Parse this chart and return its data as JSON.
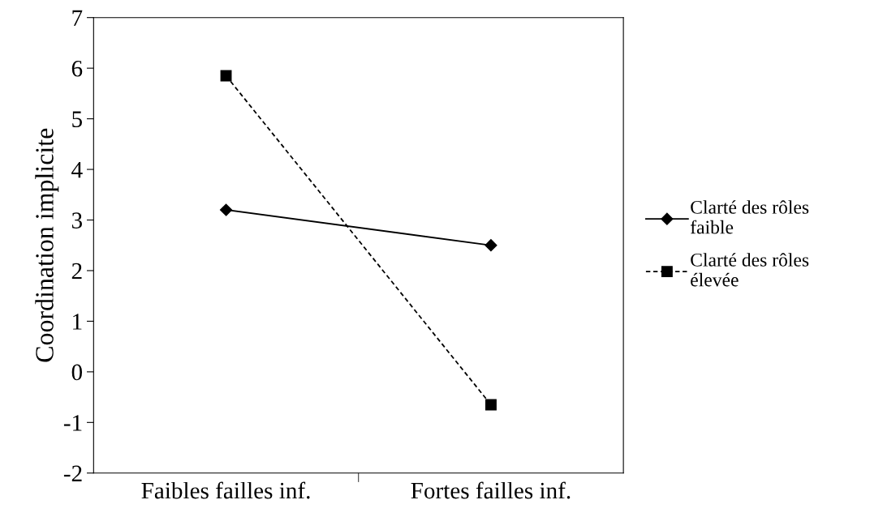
{
  "chart_data": {
    "type": "line",
    "ylabel": "Coordination implicite",
    "categories": [
      "Faibles failles inf.",
      "Fortes failles inf."
    ],
    "series": [
      {
        "name": "Clarté des rôles\nfaible",
        "color": "#000000",
        "values": [
          3.2,
          2.5
        ],
        "marker": "diamond",
        "line_style": "solid"
      },
      {
        "name": "Clarté des rôles\nélevée",
        "color": "#000000",
        "values": [
          5.85,
          -0.65
        ],
        "marker": "square",
        "line_style": "dashed"
      }
    ],
    "ylim": [
      -2,
      7
    ],
    "yticks": [
      -2,
      -1,
      0,
      1,
      2,
      3,
      4,
      5,
      6,
      7
    ],
    "grid": false,
    "legend": "right"
  }
}
